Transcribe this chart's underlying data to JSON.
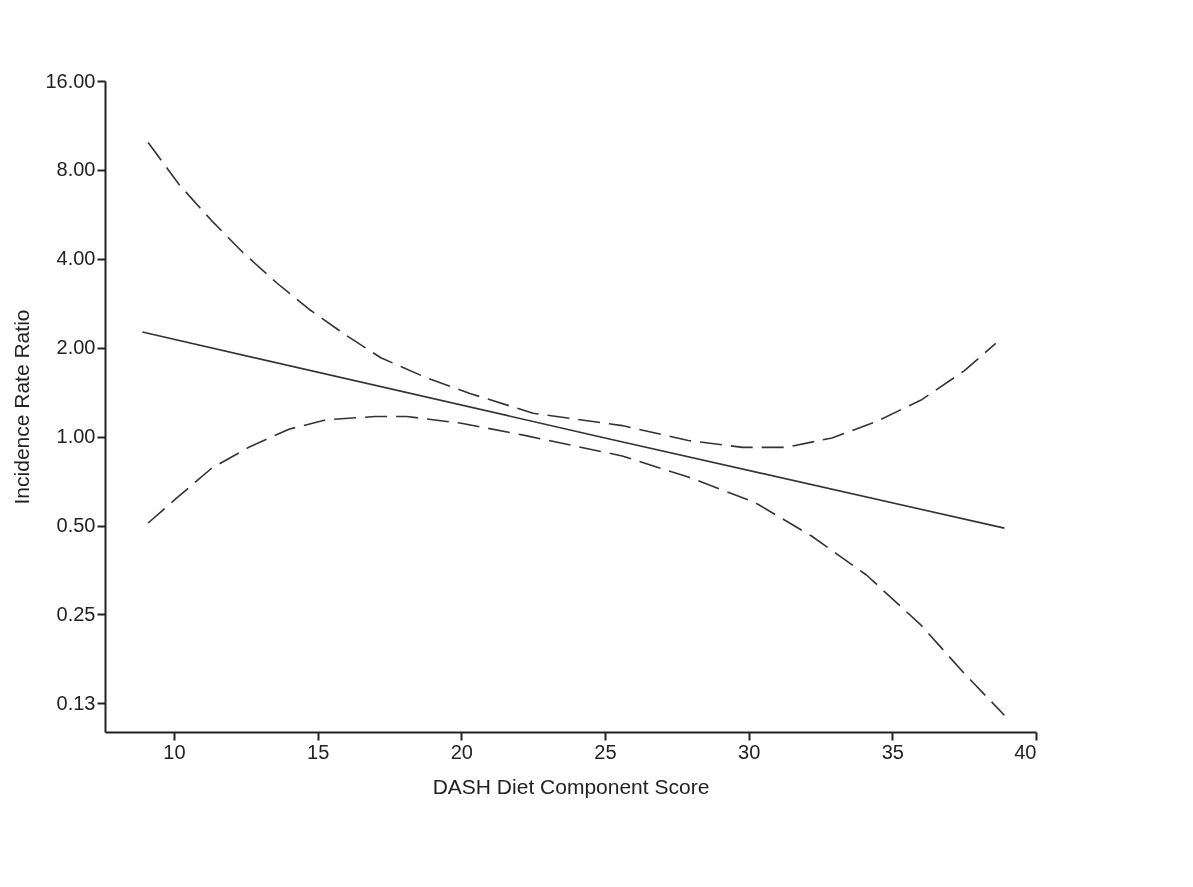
{
  "chart_data": {
    "type": "line",
    "xlabel": "DASH Diet Component Score",
    "ylabel": "Incidence Rate Ratio",
    "log": "y",
    "grid": false,
    "marker": "none",
    "xlim": [
      7.6,
      40
    ],
    "xticks": [
      10,
      15,
      20,
      25,
      30,
      35,
      40
    ],
    "ylim": [
      0.1,
      16
    ],
    "yticks": [
      {
        "value": 0.125,
        "label": "0.13"
      },
      {
        "value": 0.25,
        "label": "0.25"
      },
      {
        "value": 0.5,
        "label": "0.50"
      },
      {
        "value": 1,
        "label": "1.00"
      },
      {
        "value": 2,
        "label": "2.00"
      },
      {
        "value": 4,
        "label": "4.00"
      },
      {
        "value": 8,
        "label": "8.00"
      },
      {
        "value": 16,
        "label": "16.00"
      }
    ],
    "series": [
      {
        "color": "#333333",
        "line_style": "solid",
        "x": [
          8.9,
          25,
          38.9
        ],
        "values": [
          2.26,
          0.99,
          0.49
        ]
      },
      {
        "color": "#333333",
        "line_style": "dashed",
        "x": [
          9.1,
          10.2,
          11.3,
          12.4,
          13.6,
          14.7,
          16.0,
          17.2,
          18.8,
          20.3,
          22.5,
          25.6,
          27.9,
          29.8,
          31.3,
          32.9,
          34.4,
          36.0,
          37.5,
          38.6
        ],
        "values": [
          9.9,
          7.1,
          5.4,
          4.2,
          3.3,
          2.7,
          2.2,
          1.85,
          1.58,
          1.4,
          1.2,
          1.09,
          0.97,
          0.92,
          0.92,
          0.99,
          1.12,
          1.33,
          1.67,
          2.07
        ]
      },
      {
        "color": "#333333",
        "line_style": "dashed",
        "x": [
          9.1,
          10.1,
          11.3,
          12.6,
          14.0,
          15.3,
          17.0,
          18.1,
          20.0,
          22.2,
          25.6,
          27.9,
          30.2,
          32.2,
          34.1,
          36.0,
          37.5,
          38.9
        ],
        "values": [
          0.51,
          0.62,
          0.78,
          0.92,
          1.06,
          1.14,
          1.17,
          1.17,
          1.11,
          1.01,
          0.86,
          0.73,
          0.6,
          0.46,
          0.34,
          0.23,
          0.158,
          0.114
        ]
      }
    ]
  }
}
